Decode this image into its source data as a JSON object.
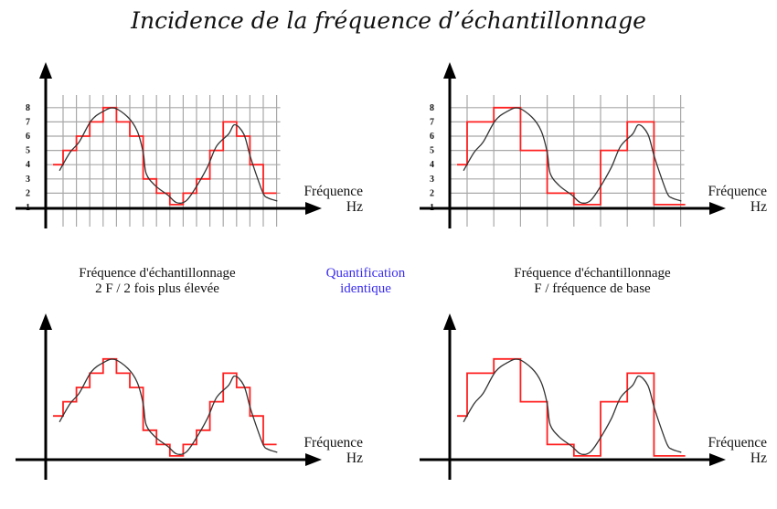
{
  "title": "Incidence de la fréquence d’échantillonnage",
  "captions": {
    "left": [
      "Fréquence d'échantillonnage",
      "2 F / 2 fois plus élevée"
    ],
    "center": [
      "Quantification",
      "identique"
    ],
    "right": [
      "Fréquence d'échantillonnage",
      "F / fréquence de base"
    ]
  },
  "axis_labels": {
    "x_line1": "Fréquence",
    "x_line2": "Hz"
  },
  "y_ticks": [
    "1",
    "2",
    "3",
    "4",
    "5",
    "6",
    "7",
    "8"
  ],
  "colors": {
    "sampled": "#ff2020",
    "signal": "#333333",
    "grid": "#a8a8a8",
    "accent": "#3a2cf0"
  },
  "chart_data": [
    {
      "type": "line",
      "name": "top-left",
      "grid": true,
      "title": "Fréquence d'échantillonnage 2 F / 2 fois plus élevée",
      "xlabel": "Fréquence Hz",
      "ylim": [
        1,
        8
      ],
      "sample_step": 1,
      "initial_level": 4,
      "sample_levels": [
        5,
        6,
        7,
        8,
        7,
        6,
        3,
        2,
        1.2,
        2,
        3,
        5,
        7,
        6,
        4,
        2
      ]
    },
    {
      "type": "line",
      "name": "top-right",
      "grid": true,
      "title": "Fréquence d'échantillonnage F / fréquence de base",
      "xlabel": "Fréquence Hz",
      "ylim": [
        1,
        8
      ],
      "sample_step": 2,
      "initial_level": 4,
      "sample_levels": [
        7,
        8,
        5,
        2,
        1.2,
        5,
        7,
        1.2
      ]
    },
    {
      "type": "line",
      "name": "bottom-left",
      "grid": false,
      "xlabel": "Fréquence Hz",
      "sample_step": 1,
      "initial_level": 4,
      "sample_levels": [
        5,
        6,
        7,
        8,
        7,
        6,
        3,
        2,
        1.2,
        2,
        3,
        5,
        7,
        6,
        4,
        2
      ]
    },
    {
      "type": "line",
      "name": "bottom-right",
      "grid": false,
      "xlabel": "Fréquence Hz",
      "sample_step": 2,
      "initial_level": 4,
      "sample_levels": [
        7,
        8,
        5,
        2,
        1.2,
        5,
        7,
        1.2
      ]
    }
  ],
  "signal_curve": [
    [
      -0.27,
      3.58
    ],
    [
      0.53,
      4.87
    ],
    [
      1.21,
      5.6
    ],
    [
      2.12,
      7.1
    ],
    [
      3.03,
      7.75
    ],
    [
      3.84,
      7.97
    ],
    [
      4.86,
      7.33
    ],
    [
      5.55,
      6.37
    ],
    [
      6.0,
      4.87
    ],
    [
      6.23,
      3.37
    ],
    [
      6.92,
      2.52
    ],
    [
      7.83,
      1.88
    ],
    [
      8.5,
      1.34
    ],
    [
      9.2,
      1.45
    ],
    [
      9.88,
      2.3
    ],
    [
      10.8,
      3.8
    ],
    [
      11.5,
      5.3
    ],
    [
      12.4,
      6.15
    ],
    [
      12.86,
      6.8
    ],
    [
      13.54,
      6.15
    ],
    [
      14.0,
      4.65
    ],
    [
      14.45,
      3.37
    ],
    [
      15.0,
      1.98
    ],
    [
      15.36,
      1.66
    ],
    [
      16.05,
      1.45
    ]
  ]
}
